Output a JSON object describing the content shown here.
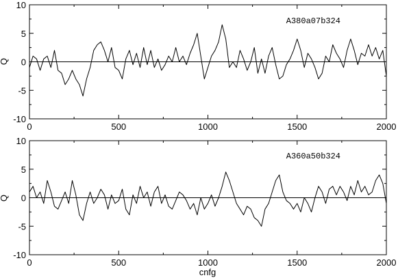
{
  "chart_data": [
    {
      "type": "line",
      "label": "A380a07b324",
      "xlabel": "",
      "ylabel": "Q",
      "xlim": [
        0,
        2000
      ],
      "ylim": [
        -10,
        10
      ],
      "xticks": [
        0,
        500,
        1000,
        1500,
        2000
      ],
      "yticks": [
        -10,
        -5,
        0,
        5,
        10
      ],
      "grid": false,
      "series": [
        {
          "color": "#000000",
          "x": [
            0,
            20,
            40,
            60,
            80,
            100,
            120,
            140,
            160,
            180,
            200,
            220,
            240,
            260,
            280,
            300,
            320,
            340,
            360,
            380,
            400,
            420,
            440,
            460,
            480,
            500,
            520,
            540,
            560,
            580,
            600,
            620,
            640,
            660,
            680,
            700,
            720,
            740,
            760,
            780,
            800,
            820,
            840,
            860,
            880,
            900,
            920,
            940,
            960,
            980,
            1000,
            1020,
            1040,
            1060,
            1080,
            1100,
            1120,
            1140,
            1160,
            1180,
            1200,
            1220,
            1240,
            1260,
            1280,
            1300,
            1320,
            1340,
            1360,
            1380,
            1400,
            1420,
            1440,
            1460,
            1480,
            1500,
            1520,
            1540,
            1560,
            1580,
            1600,
            1620,
            1640,
            1660,
            1680,
            1700,
            1720,
            1740,
            1760,
            1780,
            1800,
            1820,
            1840,
            1860,
            1880,
            1900,
            1920,
            1940,
            1960,
            1980,
            2000
          ],
          "y": [
            -1,
            1,
            0.5,
            -1.5,
            0.5,
            1,
            -1,
            2,
            -1.5,
            -2,
            -4,
            -3,
            -1.5,
            -3,
            -4,
            -6,
            -3,
            -1,
            2,
            3,
            3.5,
            2,
            0,
            2.5,
            -1,
            -1.5,
            -3,
            0.5,
            2,
            -0.5,
            1.5,
            -1,
            2.5,
            -0.5,
            2,
            -1,
            0.5,
            -1.5,
            -0.5,
            1,
            0,
            2.5,
            0,
            1,
            -0.5,
            1.5,
            3,
            5,
            1,
            -3,
            -1,
            1,
            2,
            3.5,
            6.5,
            4,
            -1,
            0,
            -1,
            2,
            0.5,
            -1.5,
            0,
            2.5,
            -2,
            0.5,
            -2,
            1,
            2.5,
            -0.5,
            -3,
            -2.5,
            -0.5,
            0.5,
            2,
            4,
            2,
            -1,
            1.5,
            0.5,
            -1,
            -3,
            -2,
            1,
            0,
            3,
            1.5,
            0.5,
            -1,
            2,
            4,
            2,
            -0.5,
            1.5,
            1,
            3,
            1,
            2.5,
            0.5,
            2,
            -2.5
          ]
        }
      ]
    },
    {
      "type": "line",
      "label": "A360a50b324",
      "xlabel": "cnfg",
      "ylabel": "Q",
      "xlim": [
        0,
        2000
      ],
      "ylim": [
        -10,
        10
      ],
      "xticks": [
        0,
        500,
        1000,
        1500,
        2000
      ],
      "yticks": [
        -10,
        -5,
        0,
        5,
        10
      ],
      "grid": false,
      "series": [
        {
          "color": "#000000",
          "x": [
            0,
            20,
            40,
            60,
            80,
            100,
            120,
            140,
            160,
            180,
            200,
            220,
            240,
            260,
            280,
            300,
            320,
            340,
            360,
            380,
            400,
            420,
            440,
            460,
            480,
            500,
            520,
            540,
            560,
            580,
            600,
            620,
            640,
            660,
            680,
            700,
            720,
            740,
            760,
            780,
            800,
            820,
            840,
            860,
            880,
            900,
            920,
            940,
            960,
            980,
            1000,
            1020,
            1040,
            1060,
            1080,
            1100,
            1120,
            1140,
            1160,
            1180,
            1200,
            1220,
            1240,
            1260,
            1280,
            1300,
            1320,
            1340,
            1360,
            1380,
            1400,
            1420,
            1440,
            1460,
            1480,
            1500,
            1520,
            1540,
            1560,
            1580,
            1600,
            1620,
            1640,
            1660,
            1680,
            1700,
            1720,
            1740,
            1760,
            1780,
            1800,
            1820,
            1840,
            1860,
            1880,
            1900,
            1920,
            1940,
            1960,
            1980,
            2000
          ],
          "y": [
            1,
            2,
            0,
            1,
            -1,
            3,
            1,
            -1.5,
            -2,
            -0.5,
            1,
            -1,
            3,
            0.5,
            -3,
            -4,
            -1,
            1,
            -1,
            0,
            1.5,
            0.5,
            -2,
            0.5,
            -1,
            -0.5,
            1.5,
            -2,
            -3,
            0.5,
            -1,
            2,
            0,
            1,
            -1.5,
            1,
            2,
            -1,
            0.5,
            -1.5,
            -2,
            -0.5,
            1,
            0.5,
            -0.5,
            -2,
            -1,
            -3,
            0,
            -2,
            -1,
            0.5,
            -1.5,
            0,
            2,
            4.5,
            3,
            1,
            -1,
            -2,
            -3,
            -1.5,
            -2,
            -3.5,
            -4,
            -5,
            -2,
            -1,
            1,
            3,
            4,
            1,
            -0.5,
            -1,
            -2,
            -1,
            -2.5,
            0,
            -1,
            -2.5,
            0,
            2,
            1,
            -1,
            1.5,
            2,
            0.5,
            2,
            1,
            -0.5,
            2,
            0.5,
            3,
            1,
            2,
            0.5,
            1,
            3,
            4,
            2.5,
            -1
          ]
        }
      ]
    }
  ]
}
